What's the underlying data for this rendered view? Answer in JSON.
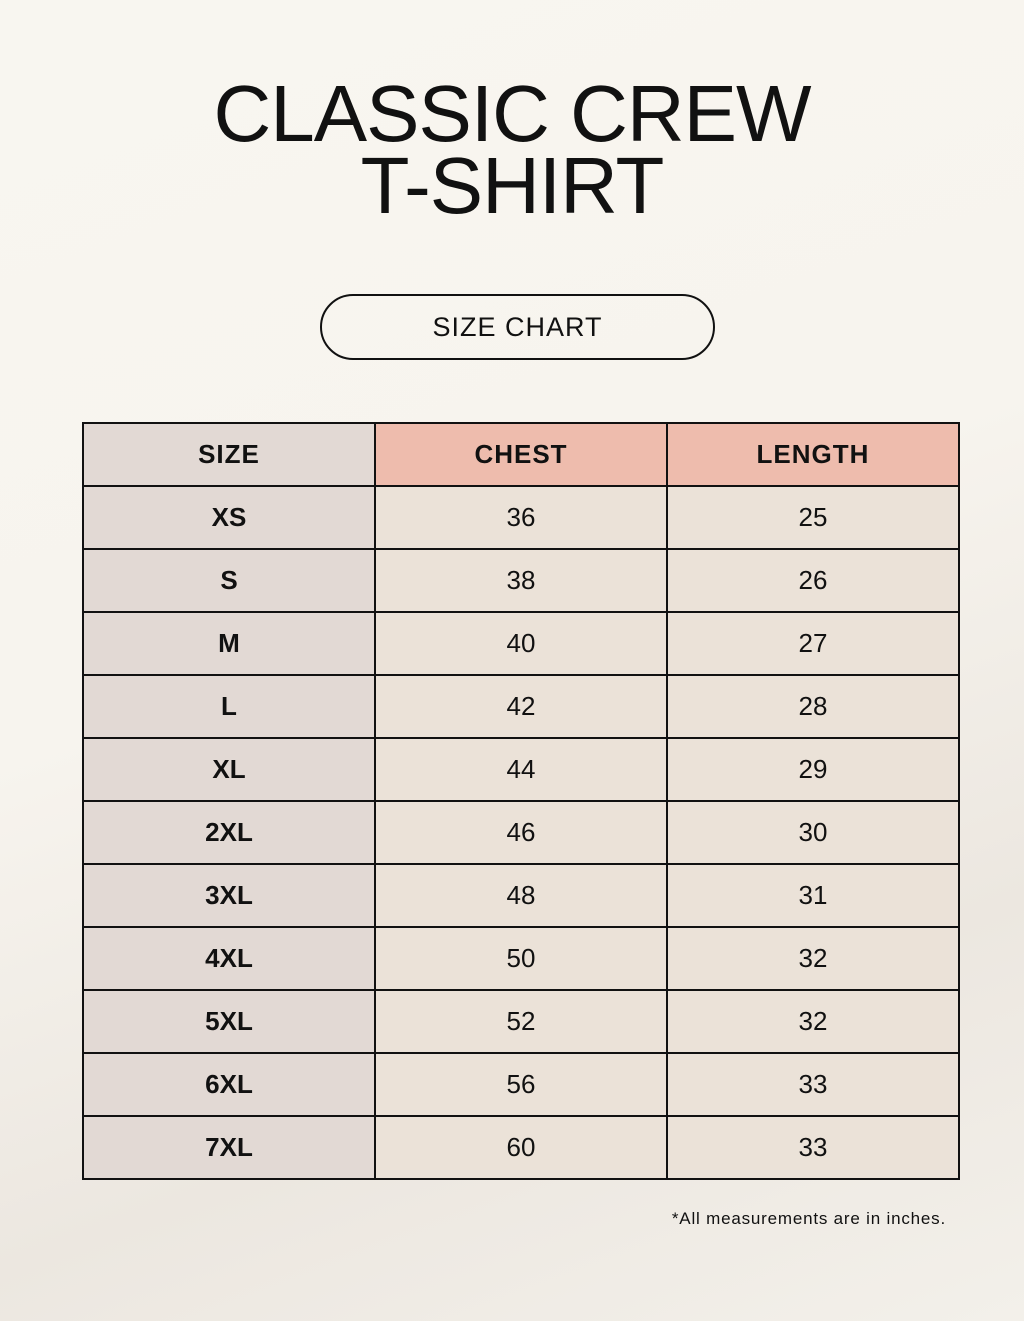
{
  "title": {
    "line1": "CLASSIC CREW",
    "line2": "T-SHIRT"
  },
  "subtitle": "SIZE CHART",
  "colors": {
    "size_column": "#e2d9d4",
    "header_accent": "#eebcad",
    "cell": "#ebe2d8"
  },
  "table": {
    "headers": [
      "SIZE",
      "CHEST",
      "LENGTH"
    ],
    "rows": [
      [
        "XS",
        "36",
        "25"
      ],
      [
        "S",
        "38",
        "26"
      ],
      [
        "M",
        "40",
        "27"
      ],
      [
        "L",
        "42",
        "28"
      ],
      [
        "XL",
        "44",
        "29"
      ],
      [
        "2XL",
        "46",
        "30"
      ],
      [
        "3XL",
        "48",
        "31"
      ],
      [
        "4XL",
        "50",
        "32"
      ],
      [
        "5XL",
        "52",
        "32"
      ],
      [
        "6XL",
        "56",
        "33"
      ],
      [
        "7XL",
        "60",
        "33"
      ]
    ]
  },
  "footnote": "*All measurements are in inches."
}
